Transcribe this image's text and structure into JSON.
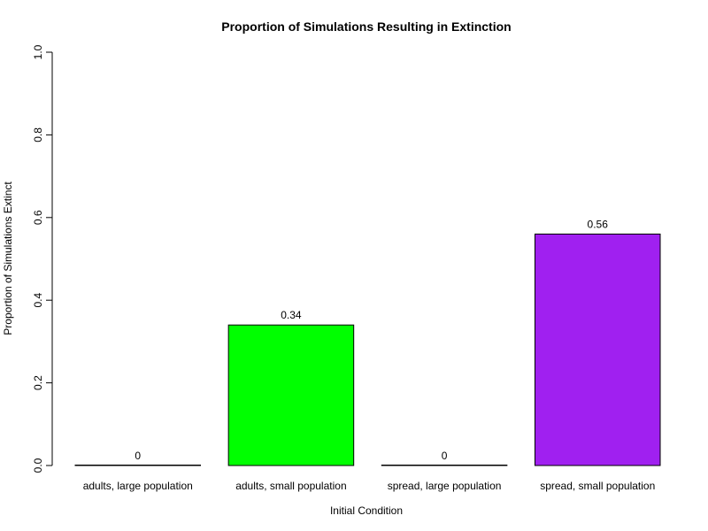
{
  "chart_data": {
    "type": "bar",
    "title": "Proportion of Simulations Resulting in Extinction",
    "xlabel": "Initial Condition",
    "ylabel": "Proportion of Simulations Extinct",
    "ylim": [
      0,
      1
    ],
    "yticks": [
      "0.0",
      "0.2",
      "0.4",
      "0.6",
      "0.8",
      "1.0"
    ],
    "ytick_values": [
      0,
      0.2,
      0.4,
      0.6,
      0.8,
      1.0
    ],
    "categories": [
      "adults, large population",
      "adults, small population",
      "spread, large population",
      "spread, small population"
    ],
    "values": [
      0,
      0.34,
      0,
      0.56
    ],
    "value_labels": [
      "0",
      "0.34",
      "0",
      "0.56"
    ],
    "colors": [
      "#FF0000",
      "#00FF00",
      "#0000FF",
      "#A020F0"
    ],
    "grid": false,
    "legend": "none"
  }
}
